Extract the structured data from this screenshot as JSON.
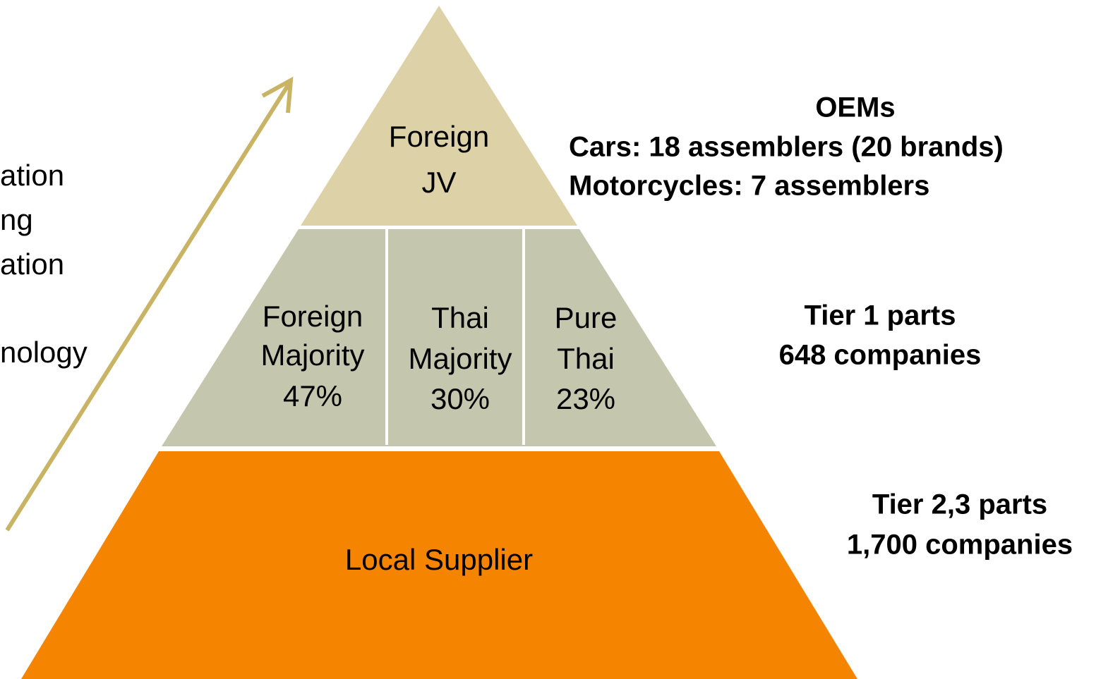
{
  "left_text": [
    "ation",
    "ng",
    "ation",
    "nology"
  ],
  "pyramid": {
    "top": {
      "lines": [
        "Foreign",
        "JV"
      ]
    },
    "middle": [
      {
        "lines": [
          "Foreign",
          "Majority",
          "47%"
        ]
      },
      {
        "lines": [
          "Thai",
          "Majority",
          "30%"
        ]
      },
      {
        "lines": [
          "Pure",
          "Thai",
          "23%"
        ]
      }
    ],
    "bottom": {
      "label": "Local Supplier"
    }
  },
  "annotations": {
    "oem": {
      "title": "OEMs",
      "lines": [
        "Cars: 18 assemblers (20 brands)",
        "Motorcycles: 7 assemblers"
      ]
    },
    "tier1": {
      "lines": [
        "Tier 1 parts",
        "648 companies"
      ]
    },
    "tier23": {
      "lines": [
        "Tier 2,3 parts",
        "1,700 companies"
      ]
    }
  }
}
